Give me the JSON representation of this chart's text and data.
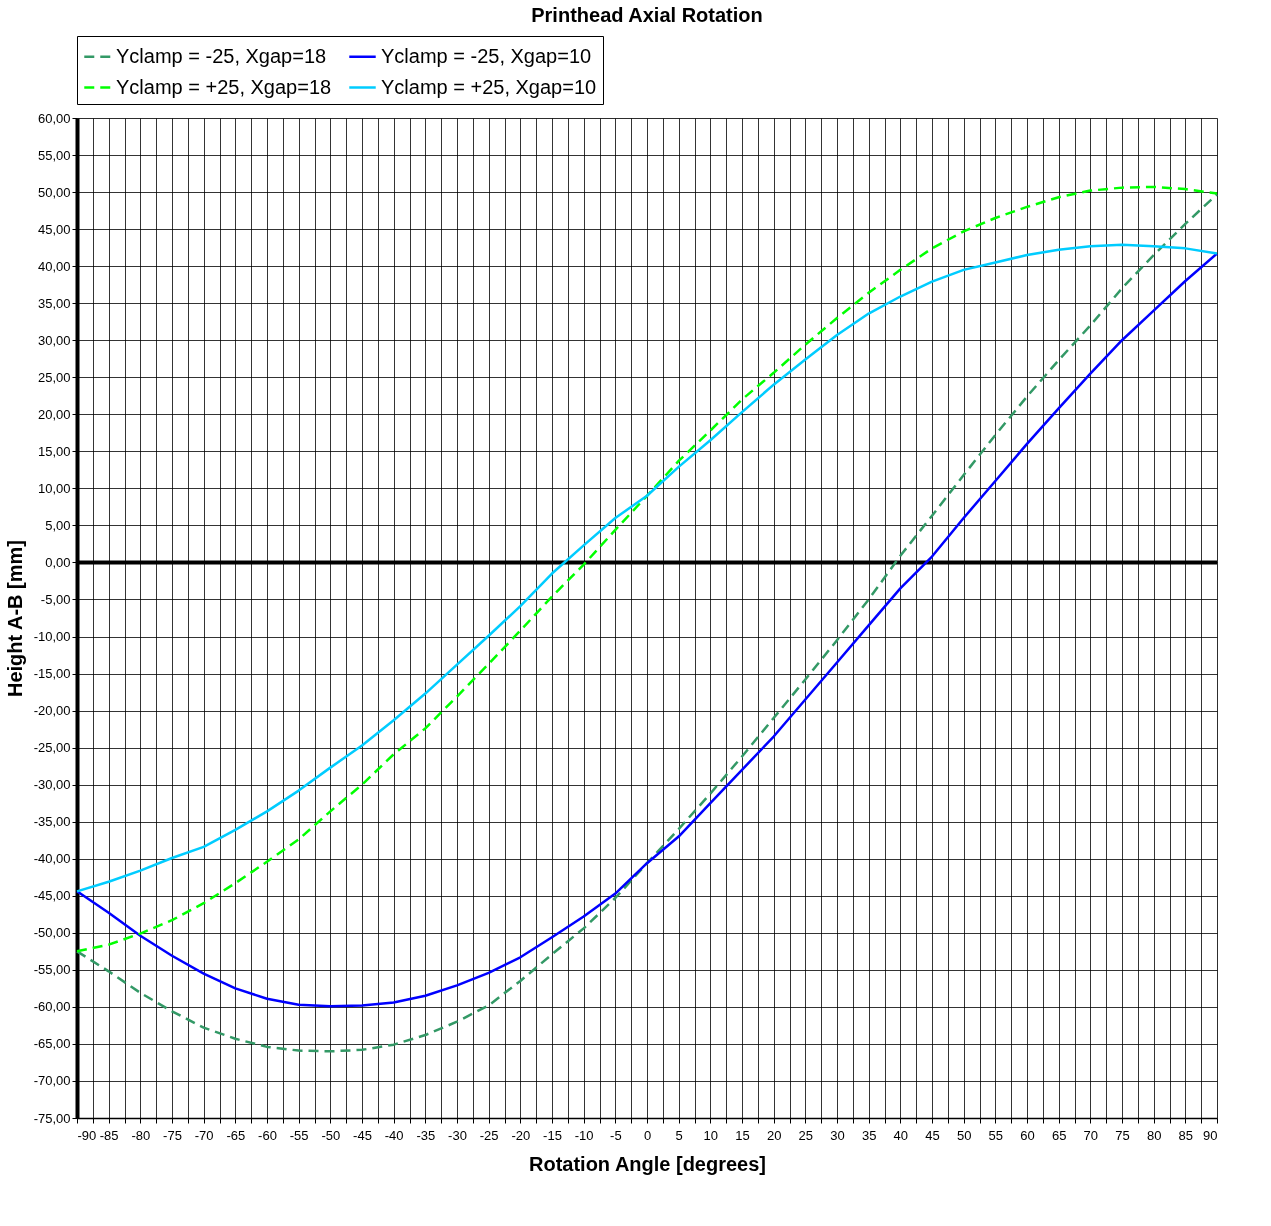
{
  "chart_data": {
    "type": "line",
    "title": "Printhead Axial Rotation",
    "xlabel": "Rotation Angle [degrees]",
    "ylabel": "Height A-B [mm]",
    "x": [
      -90,
      -85,
      -80,
      -75,
      -70,
      -65,
      -60,
      -55,
      -50,
      -45,
      -40,
      -35,
      -30,
      -25,
      -20,
      -15,
      -10,
      -5,
      0,
      5,
      10,
      15,
      20,
      25,
      30,
      35,
      40,
      45,
      50,
      55,
      60,
      65,
      70,
      75,
      80,
      85,
      90
    ],
    "series": [
      {
        "name": "Yclamp = -25, Xgap=18",
        "color": "#339966",
        "line_style": "dashed",
        "values": [
          -52.5,
          -55.2,
          -58.1,
          -60.6,
          -62.8,
          -64.3,
          -65.4,
          -65.9,
          -66,
          -65.8,
          -65.1,
          -63.8,
          -62,
          -59.8,
          -56.5,
          -52.9,
          -49.4,
          -45.3,
          -40.6,
          -36,
          -31.2,
          -26.2,
          -21,
          -15.8,
          -10.5,
          -5,
          0.9,
          6.3,
          11.8,
          17.2,
          22.4,
          27.3,
          32,
          37,
          41.5,
          45.7,
          49.7
        ]
      },
      {
        "name": "Yclamp = -25, Xgap=10",
        "color": "#0000ff",
        "line_style": "solid",
        "values": [
          -44.4,
          -47.3,
          -50.4,
          -53.1,
          -55.5,
          -57.5,
          -58.9,
          -59.7,
          -59.9,
          -59.8,
          -59.4,
          -58.5,
          -57.1,
          -55.4,
          -53.3,
          -50.6,
          -47.8,
          -44.7,
          -40.6,
          -37,
          -32.5,
          -28,
          -23.5,
          -18.5,
          -13.5,
          -8.5,
          -3.5,
          0.8,
          6,
          11,
          16,
          20.8,
          25.5,
          30,
          34,
          38,
          41.7
        ]
      },
      {
        "name": "Yclamp = +25, Xgap=18",
        "color": "#00ff00",
        "line_style": "dashed",
        "values": [
          -52.5,
          -51.6,
          -50.1,
          -48.3,
          -46,
          -43.3,
          -40.4,
          -37.4,
          -33.6,
          -30,
          -25.9,
          -22.4,
          -18.1,
          -13.7,
          -9.2,
          -4.6,
          -0.3,
          4.4,
          9,
          13.7,
          17.8,
          22,
          25.6,
          29.4,
          33,
          36.4,
          39.5,
          42.4,
          44.7,
          46.5,
          48,
          49.3,
          50.2,
          50.6,
          50.7,
          50.4,
          49.8
        ]
      },
      {
        "name": "Yclamp = +25, Xgap=10",
        "color": "#00ccff",
        "line_style": "solid",
        "values": [
          -44.4,
          -43.1,
          -41.6,
          -39.9,
          -38.4,
          -36.1,
          -33.6,
          -30.8,
          -27.7,
          -24.7,
          -21.3,
          -17.7,
          -13.8,
          -9.9,
          -5.9,
          -1.5,
          2.3,
          6,
          9,
          12.9,
          16.5,
          20.3,
          24,
          27.4,
          30.7,
          33.6,
          35.9,
          37.9,
          39.5,
          40.5,
          41.5,
          42.2,
          42.7,
          42.9,
          42.7,
          42.4,
          41.7
        ]
      }
    ],
    "xlim": [
      -90,
      90
    ],
    "xticks": [
      -90,
      {
        "value": -87.5,
        "label": null
      },
      -85,
      {
        "value": -82.5,
        "label": null
      },
      -80,
      {
        "value": -77.5,
        "label": null
      },
      -75,
      {
        "value": -72.5,
        "label": null
      },
      -70,
      {
        "value": -67.5,
        "label": null
      },
      -65,
      {
        "value": -62.5,
        "label": null
      },
      -60,
      {
        "value": -57.5,
        "label": null
      },
      -55,
      {
        "value": -52.5,
        "label": null
      },
      -50,
      {
        "value": -47.5,
        "label": null
      },
      -45,
      {
        "value": -42.5,
        "label": null
      },
      -40,
      {
        "value": -37.5,
        "label": null
      },
      -35,
      {
        "value": -32.5,
        "label": null
      },
      -30,
      {
        "value": -27.5,
        "label": null
      },
      -25,
      {
        "value": -22.5,
        "label": null
      },
      -20,
      {
        "value": -17.5,
        "label": null
      },
      -15,
      {
        "value": -12.5,
        "label": null
      },
      -10,
      {
        "value": -7.5,
        "label": null
      },
      -5,
      {
        "value": -2.5,
        "label": null
      },
      0,
      {
        "value": 2.5,
        "label": null
      },
      5,
      {
        "value": 7.5,
        "label": null
      },
      10,
      {
        "value": 12.5,
        "label": null
      },
      15,
      {
        "value": 17.5,
        "label": null
      },
      20,
      {
        "value": 22.5,
        "label": null
      },
      25,
      {
        "value": 27.5,
        "label": null
      },
      30,
      {
        "value": 32.5,
        "label": null
      },
      35,
      {
        "value": 37.5,
        "label": null
      },
      40,
      {
        "value": 42.5,
        "label": null
      },
      45,
      {
        "value": 47.5,
        "label": null
      },
      50,
      {
        "value": 52.5,
        "label": null
      },
      55,
      {
        "value": 57.5,
        "label": null
      },
      60,
      {
        "value": 62.5,
        "label": null
      },
      65,
      {
        "value": 67.5,
        "label": null
      },
      70,
      {
        "value": 72.5,
        "label": null
      },
      75,
      {
        "value": 77.5,
        "label": null
      },
      80,
      {
        "value": 82.5,
        "label": null
      },
      85,
      {
        "value": 87.5,
        "label": null
      },
      90
    ],
    "ylim": [
      -75,
      60
    ],
    "yticks": [
      {
        "value": 60,
        "label": "60,00"
      },
      {
        "value": 55,
        "label": "55,00"
      },
      {
        "value": 50,
        "label": "50,00"
      },
      {
        "value": 45,
        "label": "45,00"
      },
      {
        "value": 40,
        "label": "40,00"
      },
      {
        "value": 35,
        "label": "35,00"
      },
      {
        "value": 30,
        "label": "30,00"
      },
      {
        "value": 25,
        "label": "25,00"
      },
      {
        "value": 20,
        "label": "20,00"
      },
      {
        "value": 15,
        "label": "15,00"
      },
      {
        "value": 10,
        "label": "10,00"
      },
      {
        "value": 5,
        "label": "5,00"
      },
      {
        "value": 0,
        "label": "0,00"
      },
      {
        "value": -5,
        "label": "-5,00"
      },
      {
        "value": -10,
        "label": "-10,00"
      },
      {
        "value": -15,
        "label": "-15,00"
      },
      {
        "value": -20,
        "label": "-20,00"
      },
      {
        "value": -25,
        "label": "-25,00"
      },
      {
        "value": -30,
        "label": "-30,00"
      },
      {
        "value": -35,
        "label": "-35,00"
      },
      {
        "value": -40,
        "label": "-40,00"
      },
      {
        "value": -45,
        "label": "-45,00"
      },
      {
        "value": -50,
        "label": "-50,00"
      },
      {
        "value": -55,
        "label": "-55,00"
      },
      {
        "value": -60,
        "label": "-60,00"
      },
      {
        "value": -65,
        "label": "-65,00"
      },
      {
        "value": -70,
        "label": "-70,00"
      },
      {
        "value": -75,
        "label": "-75,00"
      }
    ],
    "ref_lines": [
      {
        "axis": "y",
        "value": 0,
        "color": "#000000"
      }
    ],
    "grid": true,
    "legend": "top",
    "marker": "none"
  }
}
